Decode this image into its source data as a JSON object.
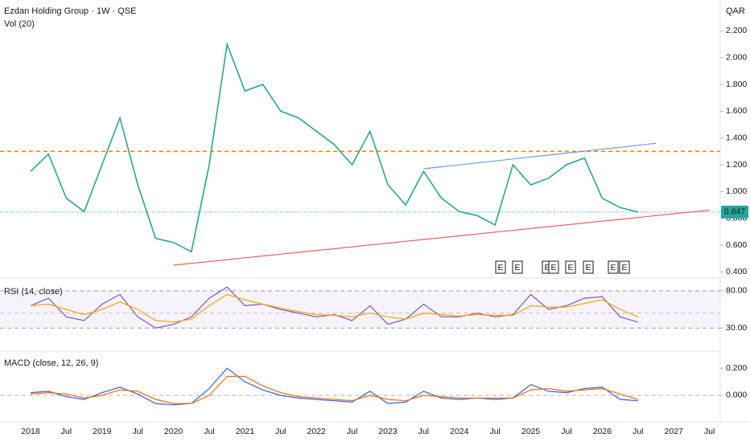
{
  "chart_data": [
    {
      "type": "line",
      "title": "Ezdan Holding Group · 1W · QSE",
      "subtitle": "Vol (20)",
      "currency": "QAR",
      "categories": [
        "2018",
        null,
        "Jul",
        null,
        "2019",
        null,
        "Jul",
        null,
        "2020",
        null,
        "Jul",
        null,
        "2021",
        null,
        "Jul",
        null,
        "2022",
        null,
        "Jul",
        null,
        "2023",
        null,
        "Jul",
        null,
        "2024",
        null,
        "Jul",
        null,
        "2025",
        null,
        "Jul",
        null,
        "2026",
        null,
        "Jul",
        null,
        "2027",
        null,
        "Jul"
      ],
      "series": [
        {
          "color": "#26a69a",
          "values": [
            1.15,
            1.28,
            0.95,
            0.85,
            1.2,
            1.55,
            1.05,
            0.65,
            0.62,
            0.55,
            1.2,
            2.1,
            1.75,
            1.8,
            1.6,
            1.55,
            1.45,
            1.35,
            1.2,
            1.45,
            1.05,
            0.9,
            1.15,
            0.95,
            0.85,
            0.82,
            0.75,
            1.2,
            1.05,
            1.1,
            1.2,
            1.25,
            0.95,
            0.88,
            0.847,
            null,
            null,
            null,
            null
          ],
          "value_labels": [
            null,
            null,
            null,
            null,
            null,
            null,
            null,
            null,
            null,
            null,
            null,
            null,
            null,
            null,
            null,
            null,
            null,
            null,
            null,
            null,
            null,
            null,
            null,
            null,
            null,
            null,
            null,
            null,
            null,
            null,
            null,
            null,
            null,
            null,
            "0.847",
            null,
            null,
            null,
            null
          ]
        },
        {
          "color": "#f05a5a",
          "values": [
            null,
            null,
            null,
            null,
            null,
            null,
            null,
            null,
            0.45,
            0.464,
            0.477,
            0.491,
            0.505,
            0.519,
            0.532,
            0.546,
            0.56,
            0.573,
            0.587,
            0.601,
            0.614,
            0.628,
            0.642,
            0.655,
            0.669,
            0.683,
            0.697,
            0.71,
            0.724,
            0.738,
            0.751,
            0.765,
            0.779,
            0.792,
            0.806,
            0.82,
            0.834,
            0.847,
            0.861
          ]
        },
        {
          "color": "#6f98e8",
          "values": [
            null,
            null,
            null,
            null,
            null,
            null,
            null,
            null,
            null,
            null,
            null,
            null,
            null,
            null,
            null,
            null,
            null,
            null,
            null,
            null,
            null,
            null,
            1.17,
            1.185,
            1.199,
            1.214,
            1.228,
            1.243,
            1.258,
            1.272,
            1.287,
            1.301,
            1.316,
            1.33,
            1.345,
            1.36,
            null,
            null,
            null
          ]
        }
      ],
      "hlines": [
        {
          "value": 1.3,
          "color": "#f57c00"
        }
      ],
      "earnings": [
        "E",
        "E",
        "E",
        "E",
        "E",
        "E",
        "E",
        "E"
      ],
      "ylim": [
        0.36,
        2.43
      ],
      "yticks": [
        {
          "value": 0.4,
          "label": "0.400"
        },
        {
          "value": 0.6,
          "label": "0.600"
        },
        {
          "value": 0.8,
          "label": "0.800"
        },
        {
          "value": 1.0,
          "label": "1.000"
        },
        {
          "value": 1.2,
          "label": "1.200"
        },
        {
          "value": 1.4,
          "label": "1.400"
        },
        {
          "value": 1.6,
          "label": "1.600"
        },
        {
          "value": 1.8,
          "label": "1.800"
        },
        {
          "value": 2.0,
          "label": "2.000"
        },
        {
          "value": 2.2,
          "label": "2.200"
        }
      ]
    },
    {
      "type": "line",
      "title": "RSI (14, close)",
      "series": [
        {
          "color": "#7e57c2",
          "values": [
            60,
            70,
            45,
            40,
            62,
            75,
            45,
            30,
            35,
            45,
            70,
            85,
            60,
            62,
            55,
            50,
            45,
            48,
            40,
            60,
            35,
            42,
            62,
            45,
            45,
            50,
            45,
            48,
            75,
            55,
            60,
            70,
            72,
            45,
            38,
            null,
            null,
            null,
            null
          ]
        },
        {
          "color": "#f7a600",
          "values": [
            60,
            62,
            55,
            48,
            55,
            65,
            55,
            40,
            38,
            42,
            60,
            75,
            68,
            62,
            57,
            52,
            48,
            47,
            45,
            50,
            45,
            42,
            50,
            48,
            46,
            48,
            47,
            47,
            60,
            58,
            58,
            63,
            68,
            55,
            45,
            null,
            null,
            null,
            null
          ]
        }
      ],
      "hlines": [
        {
          "value": 80,
          "color": "#9e9e9e"
        },
        {
          "value": 50,
          "color": "#c0c0c0"
        },
        {
          "value": 30,
          "color": "#9e9e9e"
        }
      ],
      "ylim": [
        0,
        96
      ],
      "yticks": [
        {
          "value": 80,
          "label": "80.00"
        },
        {
          "value": 30,
          "label": "30.00"
        }
      ]
    },
    {
      "type": "line",
      "title": "MACD (close, 12, 26, 9)",
      "series": [
        {
          "color": "#2962ff",
          "values": [
            0.02,
            0.03,
            -0.01,
            -0.03,
            0.02,
            0.06,
            0.01,
            -0.06,
            -0.07,
            -0.06,
            0.05,
            0.2,
            0.1,
            0.04,
            0.0,
            -0.02,
            -0.03,
            -0.04,
            -0.05,
            0.03,
            -0.06,
            -0.05,
            0.03,
            -0.02,
            -0.03,
            -0.02,
            -0.03,
            -0.02,
            0.08,
            0.03,
            0.02,
            0.05,
            0.06,
            -0.03,
            -0.04,
            null,
            null,
            null,
            null
          ]
        },
        {
          "color": "#ff6d00",
          "values": [
            0.01,
            0.02,
            0.01,
            -0.02,
            0.0,
            0.04,
            0.03,
            -0.03,
            -0.06,
            -0.06,
            0.0,
            0.14,
            0.14,
            0.07,
            0.02,
            -0.01,
            -0.02,
            -0.03,
            -0.04,
            0.0,
            -0.03,
            -0.04,
            0.0,
            -0.01,
            -0.02,
            -0.02,
            -0.02,
            -0.02,
            0.04,
            0.05,
            0.03,
            0.04,
            0.05,
            0.01,
            -0.03,
            null,
            null,
            null,
            null
          ]
        }
      ],
      "hlines": [
        {
          "value": 0,
          "color": "#b0b0b0"
        }
      ],
      "ylim": [
        -0.19,
        0.32
      ],
      "yticks": [
        {
          "value": 0.2,
          "label": "0.200"
        },
        {
          "value": 0,
          "label": "0.000"
        }
      ]
    }
  ]
}
